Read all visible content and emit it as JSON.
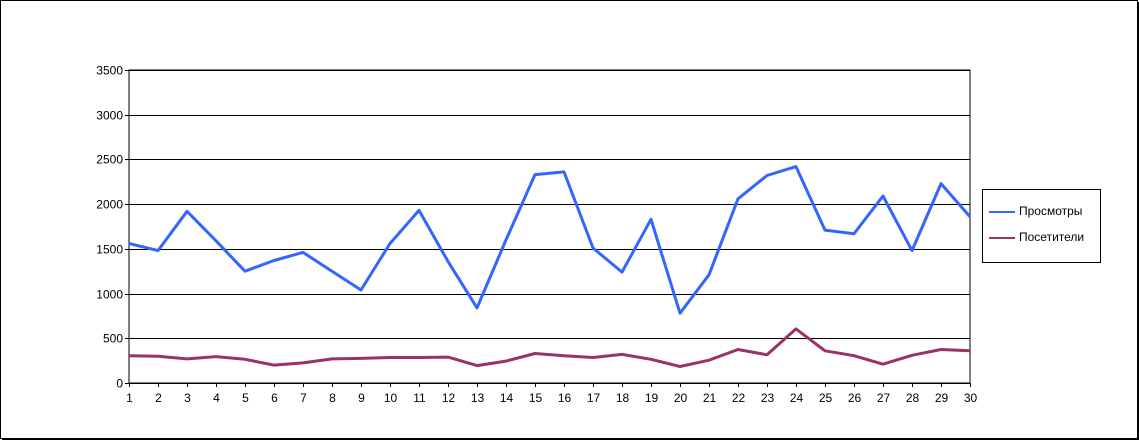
{
  "chart_data": {
    "type": "line",
    "title": "",
    "xlabel": "",
    "ylabel": "",
    "categories": [
      "1",
      "2",
      "3",
      "4",
      "5",
      "6",
      "7",
      "8",
      "9",
      "10",
      "11",
      "12",
      "13",
      "14",
      "15",
      "16",
      "17",
      "18",
      "19",
      "20",
      "21",
      "22",
      "23",
      "24",
      "25",
      "26",
      "27",
      "28",
      "29",
      "30"
    ],
    "ylim": [
      0,
      3500
    ],
    "yticks": [
      "0",
      "500",
      "1000",
      "1500",
      "2000",
      "2500",
      "3000",
      "3500"
    ],
    "grid": "horizontal",
    "legend_position": "right",
    "series": [
      {
        "name": "Просмотры",
        "color": "#3366ff",
        "values": [
          1560,
          1480,
          1920,
          1590,
          1250,
          1370,
          1460,
          1250,
          1040,
          1560,
          1930,
          1360,
          840,
          1600,
          2330,
          2360,
          1510,
          1240,
          1830,
          780,
          1210,
          2060,
          2320,
          2420,
          1710,
          1670,
          2090,
          1480,
          2230,
          1860
        ]
      },
      {
        "name": "Посетители",
        "color": "#993366",
        "values": [
          305,
          300,
          270,
          295,
          265,
          200,
          225,
          270,
          275,
          285,
          285,
          290,
          195,
          245,
          330,
          305,
          285,
          320,
          265,
          185,
          255,
          375,
          315,
          605,
          360,
          305,
          210,
          310,
          375,
          360
        ]
      }
    ]
  }
}
